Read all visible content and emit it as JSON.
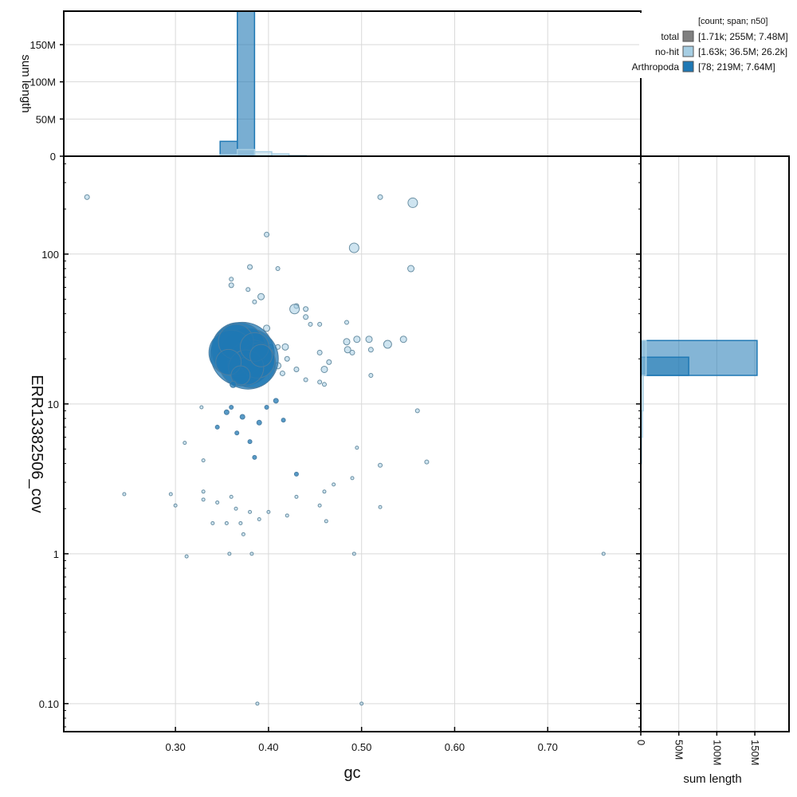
{
  "chart_data": {
    "type": "scatter",
    "x_label": "gc",
    "y_label": "ERR13382506_cov",
    "y_scale": "log",
    "x_range": [
      0.18,
      0.8
    ],
    "y_range": [
      0.065,
      450
    ],
    "x_ticks": [
      "0.30",
      "0.40",
      "0.50",
      "0.60",
      "0.70"
    ],
    "y_ticks": [
      "0.10",
      "1",
      "10",
      "100"
    ],
    "grid": true,
    "legend": {
      "position": "top-right",
      "header": "[count; span; n50]",
      "entries": [
        {
          "name": "total",
          "color": "#808080",
          "stats": "[1.71k; 255M; 7.48M]"
        },
        {
          "name": "no-hit",
          "color": "#a6cee3",
          "stats": "[1.63k; 36.5M; 26.2k]"
        },
        {
          "name": "Arthropoda",
          "color": "#1f78b4",
          "stats": "[78; 219M; 7.64M]"
        }
      ]
    },
    "top_histogram": {
      "y_label": "sum length",
      "y_ticks": [
        "0",
        "50M",
        "100M",
        "150M"
      ],
      "y_max": 195,
      "bin_width": 0.0185,
      "series": [
        {
          "name": "Arthropoda",
          "bins": [
            [
              0.348,
              20
            ],
            [
              0.3665,
              195
            ],
            [
              0.385,
              0.4
            ]
          ]
        },
        {
          "name": "no-hit",
          "bins": [
            [
              0.348,
              2
            ],
            [
              0.3665,
              9
            ],
            [
              0.385,
              6
            ],
            [
              0.4035,
              3
            ],
            [
              0.422,
              1
            ],
            [
              0.4405,
              0.4
            ],
            [
              0.459,
              0.2
            ]
          ]
        }
      ]
    },
    "right_histogram": {
      "x_label": "sum length",
      "x_ticks": [
        "0",
        "50M",
        "100M",
        "150M"
      ],
      "x_max": 195,
      "series": [
        {
          "name": "Arthropoda",
          "bins": [
            [
              15.5,
              26.5,
              153
            ],
            [
              15.5,
              20.5,
              63
            ]
          ]
        },
        {
          "name": "no-hit",
          "bins": [
            [
              9,
              15.5,
              3
            ],
            [
              6,
              9,
              2
            ],
            [
              4,
              6,
              1
            ],
            [
              15.5,
              26.5,
              7
            ]
          ]
        }
      ]
    },
    "series": [
      {
        "name": "Arthropoda",
        "color": "#1f78b4",
        "points": [
          [
            0.372,
            21.5,
            40
          ],
          [
            0.378,
            20,
            38
          ],
          [
            0.368,
            23,
            34
          ],
          [
            0.382,
            18.5,
            30
          ],
          [
            0.36,
            22,
            28
          ],
          [
            0.388,
            19.5,
            22
          ],
          [
            0.365,
            26,
            22
          ],
          [
            0.376,
            17.5,
            22
          ],
          [
            0.385,
            24,
            18
          ],
          [
            0.357,
            19,
            16
          ],
          [
            0.392,
            21,
            14
          ],
          [
            0.37,
            15.5,
            12
          ],
          [
            0.362,
            13.5,
            4
          ],
          [
            0.355,
            8.8,
            3
          ],
          [
            0.372,
            8.2,
            3
          ],
          [
            0.39,
            7.5,
            3
          ],
          [
            0.366,
            6.4,
            2.5
          ],
          [
            0.38,
            5.6,
            2.5
          ],
          [
            0.398,
            9.5,
            2.5
          ],
          [
            0.408,
            10.5,
            3
          ],
          [
            0.43,
            3.4,
            2.5
          ],
          [
            0.36,
            9.5,
            2.5
          ],
          [
            0.345,
            7,
            2.5
          ],
          [
            0.385,
            4.4,
            2.5
          ],
          [
            0.416,
            7.8,
            2.5
          ]
        ]
      },
      {
        "name": "no-hit",
        "color": "#a6cee3",
        "points": [
          [
            0.205,
            240,
            3
          ],
          [
            0.52,
            240,
            3
          ],
          [
            0.555,
            220,
            6
          ],
          [
            0.398,
            135,
            3
          ],
          [
            0.492,
            110,
            6
          ],
          [
            0.553,
            80,
            4
          ],
          [
            0.38,
            82,
            3
          ],
          [
            0.41,
            80,
            2.5
          ],
          [
            0.36,
            68,
            2.5
          ],
          [
            0.36,
            62,
            3
          ],
          [
            0.392,
            52,
            4
          ],
          [
            0.378,
            58,
            2.5
          ],
          [
            0.385,
            48,
            2.5
          ],
          [
            0.43,
            45,
            3
          ],
          [
            0.44,
            43,
            3
          ],
          [
            0.428,
            43,
            6
          ],
          [
            0.44,
            38,
            3
          ],
          [
            0.445,
            34,
            2.5
          ],
          [
            0.398,
            32,
            4
          ],
          [
            0.455,
            34,
            2.5
          ],
          [
            0.484,
            35,
            2.5
          ],
          [
            0.484,
            26,
            4
          ],
          [
            0.495,
            27,
            4
          ],
          [
            0.508,
            27,
            4
          ],
          [
            0.545,
            27,
            4
          ],
          [
            0.528,
            25,
            5
          ],
          [
            0.51,
            23,
            3
          ],
          [
            0.49,
            22,
            3
          ],
          [
            0.485,
            23,
            4
          ],
          [
            0.455,
            22,
            3
          ],
          [
            0.418,
            24,
            4
          ],
          [
            0.41,
            24,
            3
          ],
          [
            0.402,
            24,
            3
          ],
          [
            0.42,
            20,
            3
          ],
          [
            0.465,
            19,
            3
          ],
          [
            0.46,
            17,
            4
          ],
          [
            0.51,
            15.5,
            2.5
          ],
          [
            0.44,
            14.5,
            2.5
          ],
          [
            0.455,
            14,
            2.5
          ],
          [
            0.46,
            13.5,
            2.5
          ],
          [
            0.41,
            18,
            4
          ],
          [
            0.415,
            16,
            3
          ],
          [
            0.43,
            17,
            3
          ],
          [
            0.56,
            9,
            2.5
          ],
          [
            0.57,
            4.1,
            2.5
          ],
          [
            0.52,
            3.9,
            2.5
          ],
          [
            0.76,
            1,
            2
          ],
          [
            0.245,
            2.5,
            2
          ],
          [
            0.295,
            2.5,
            2
          ],
          [
            0.3,
            2.1,
            2
          ],
          [
            0.312,
            0.96,
            2
          ],
          [
            0.358,
            1,
            2
          ],
          [
            0.382,
            1,
            2
          ],
          [
            0.492,
            1,
            2
          ],
          [
            0.388,
            0.1,
            2
          ],
          [
            0.5,
            0.1,
            2
          ],
          [
            0.52,
            2.05,
            2
          ],
          [
            0.33,
            2.6,
            2
          ],
          [
            0.33,
            2.3,
            2
          ],
          [
            0.345,
            2.2,
            2
          ],
          [
            0.36,
            2.4,
            2
          ],
          [
            0.365,
            2.0,
            2
          ],
          [
            0.37,
            1.6,
            2
          ],
          [
            0.373,
            1.35,
            2
          ],
          [
            0.38,
            1.9,
            2
          ],
          [
            0.39,
            1.7,
            2
          ],
          [
            0.455,
            2.1,
            2
          ],
          [
            0.46,
            2.6,
            2
          ],
          [
            0.462,
            1.65,
            2
          ],
          [
            0.34,
            1.6,
            2
          ],
          [
            0.355,
            1.6,
            2
          ],
          [
            0.33,
            4.2,
            2
          ],
          [
            0.31,
            5.5,
            2
          ],
          [
            0.328,
            9.5,
            2
          ],
          [
            0.42,
            1.8,
            2
          ],
          [
            0.43,
            2.4,
            2
          ],
          [
            0.47,
            2.9,
            2
          ],
          [
            0.49,
            3.2,
            2
          ],
          [
            0.495,
            5.1,
            2
          ],
          [
            0.4,
            1.9,
            2
          ]
        ]
      }
    ]
  }
}
